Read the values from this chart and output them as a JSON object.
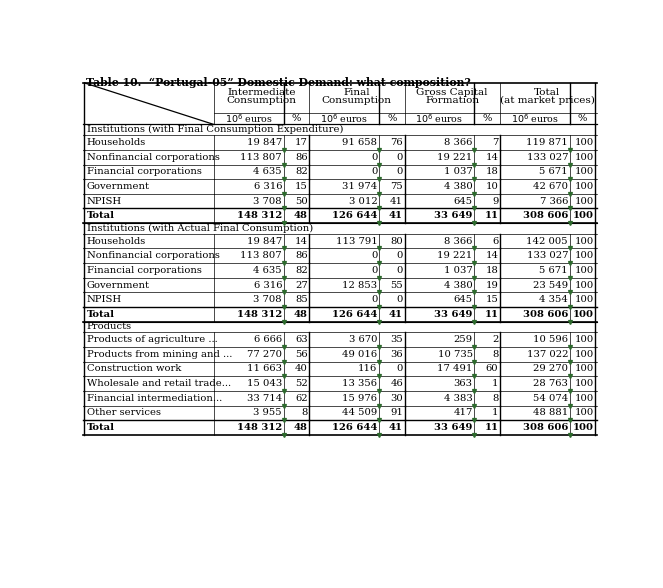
{
  "title": "Table 10.  “Portugal-05” Domestic Demand: what composition?",
  "header_row1": [
    "Intermediate\nConsumption",
    "Final\nConsumption",
    "Gross Capital\nFormation",
    "Total\n(at market prices)"
  ],
  "section1_title": "Institutions (with Final Consumption Expenditure)",
  "section2_title": "Institutions (with Actual Final Consumption)",
  "section3_title": "Products",
  "section1_rows": [
    [
      "Households",
      "19 847",
      "17",
      "91 658",
      "76",
      "8 366",
      "7",
      "119 871",
      "100"
    ],
    [
      "Nonfinancial corporations",
      "113 807",
      "86",
      "0",
      "0",
      "19 221",
      "14",
      "133 027",
      "100"
    ],
    [
      "Financial corporations",
      "4 635",
      "82",
      "0",
      "0",
      "1 037",
      "18",
      "5 671",
      "100"
    ],
    [
      "Government",
      "6 316",
      "15",
      "31 974",
      "75",
      "4 380",
      "10",
      "42 670",
      "100"
    ],
    [
      "NPISH",
      "3 708",
      "50",
      "3 012",
      "41",
      "645",
      "9",
      "7 366",
      "100"
    ],
    [
      "Total",
      "148 312",
      "48",
      "126 644",
      "41",
      "33 649",
      "11",
      "308 606",
      "100"
    ]
  ],
  "section2_rows": [
    [
      "Households",
      "19 847",
      "14",
      "113 791",
      "80",
      "8 366",
      "6",
      "142 005",
      "100"
    ],
    [
      "Nonfinancial corporations",
      "113 807",
      "86",
      "0",
      "0",
      "19 221",
      "14",
      "133 027",
      "100"
    ],
    [
      "Financial corporations",
      "4 635",
      "82",
      "0",
      "0",
      "1 037",
      "18",
      "5 671",
      "100"
    ],
    [
      "Government",
      "6 316",
      "27",
      "12 853",
      "55",
      "4 380",
      "19",
      "23 549",
      "100"
    ],
    [
      "NPISH",
      "3 708",
      "85",
      "0",
      "0",
      "645",
      "15",
      "4 354",
      "100"
    ],
    [
      "Total",
      "148 312",
      "48",
      "126 644",
      "41",
      "33 649",
      "11",
      "308 606",
      "100"
    ]
  ],
  "section3_rows": [
    [
      "Products of agriculture ...",
      "6 666",
      "63",
      "3 670",
      "35",
      "259",
      "2",
      "10 596",
      "100"
    ],
    [
      "Products from mining and ...",
      "77 270",
      "56",
      "49 016",
      "36",
      "10 735",
      "8",
      "137 022",
      "100"
    ],
    [
      "Construction work",
      "11 663",
      "40",
      "116",
      "0",
      "17 491",
      "60",
      "29 270",
      "100"
    ],
    [
      "Wholesale and retail trade...",
      "15 043",
      "52",
      "13 356",
      "46",
      "363",
      "1",
      "28 763",
      "100"
    ],
    [
      "Financial intermediation...",
      "33 714",
      "62",
      "15 976",
      "30",
      "4 383",
      "8",
      "54 074",
      "100"
    ],
    [
      "Other services",
      "3 955",
      "8",
      "44 509",
      "91",
      "417",
      "1",
      "48 881",
      "100"
    ],
    [
      "Total",
      "148 312",
      "48",
      "126 644",
      "41",
      "33 649",
      "11",
      "308 606",
      "100"
    ]
  ],
  "bg_color": "#ffffff",
  "green_marker_color": "#2d6a2d"
}
